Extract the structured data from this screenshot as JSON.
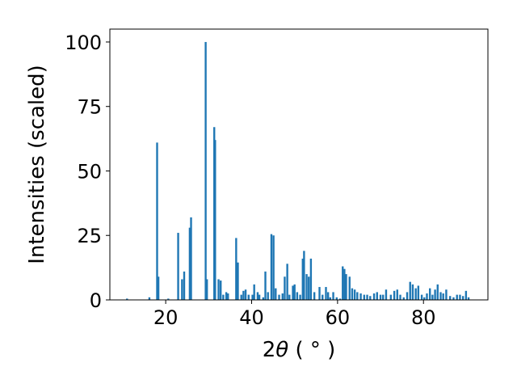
{
  "chart_data": {
    "type": "bar",
    "xlabel_prefix": "2",
    "xlabel_symbol": "θ",
    "xlabel_unit": " ( ° )",
    "ylabel": "Intensities (scaled)",
    "xlim": [
      7,
      95
    ],
    "ylim": [
      0,
      105
    ],
    "xticks": [
      20,
      40,
      60,
      80
    ],
    "yticks": [
      0,
      25,
      50,
      75,
      100
    ],
    "grid": false,
    "bar_color": "#1f77b4",
    "bar_width": 0.45,
    "x": [
      11,
      16.2,
      18.0,
      18.3,
      20.6,
      22.9,
      23.8,
      24.3,
      25.6,
      25.9,
      29.3,
      29.6,
      31.3,
      31.5,
      32.3,
      32.8,
      33.4,
      34.1,
      34.5,
      36.4,
      36.8,
      37.6,
      38.1,
      38.6,
      39.3,
      40.2,
      40.6,
      41.4,
      41.8,
      42.7,
      43.2,
      43.8,
      44.6,
      45.1,
      45.6,
      46.4,
      47.2,
      47.7,
      48.3,
      48.8,
      49.6,
      50.0,
      50.6,
      51.3,
      51.9,
      52.2,
      52.8,
      53.3,
      53.8,
      54.6,
      55.8,
      56.5,
      57.3,
      57.8,
      58.3,
      59.0,
      59.8,
      60.6,
      61.2,
      61.6,
      62.0,
      62.8,
      63.4,
      64.0,
      64.6,
      65.4,
      66.2,
      66.9,
      67.6,
      68.5,
      69.2,
      70.0,
      70.6,
      71.3,
      72.4,
      73.2,
      73.9,
      74.6,
      75.4,
      76.2,
      76.9,
      77.5,
      78.2,
      78.8,
      79.6,
      80.2,
      80.8,
      81.5,
      82.1,
      82.7,
      83.3,
      84.0,
      84.6,
      85.3,
      86.2,
      87.0,
      87.8,
      88.5,
      89.2,
      89.9,
      90.5
    ],
    "values": [
      0.5,
      1,
      61,
      9,
      0.5,
      26,
      8,
      11,
      28,
      32,
      100,
      8,
      67,
      62,
      8,
      7.5,
      2,
      3,
      2.5,
      24,
      14.5,
      2,
      3.5,
      4,
      2,
      2,
      6,
      3,
      2,
      1,
      11,
      3,
      25.5,
      25,
      4.5,
      2,
      2.5,
      9,
      14,
      2,
      5.5,
      6,
      3,
      2,
      16,
      19,
      10,
      9,
      16,
      3,
      5,
      2,
      5,
      3,
      1,
      3,
      1,
      0.5,
      13,
      12,
      10,
      9,
      4.5,
      4,
      3,
      2.5,
      2,
      2,
      1.5,
      2.5,
      3,
      2,
      2,
      4,
      2,
      3.5,
      4,
      2,
      1,
      3,
      7,
      6,
      4.5,
      5.5,
      2,
      1,
      2.5,
      4.5,
      2,
      4,
      6,
      3,
      2.5,
      4,
      1.5,
      1,
      2,
      2,
      1.5,
      3.5,
      1
    ]
  }
}
